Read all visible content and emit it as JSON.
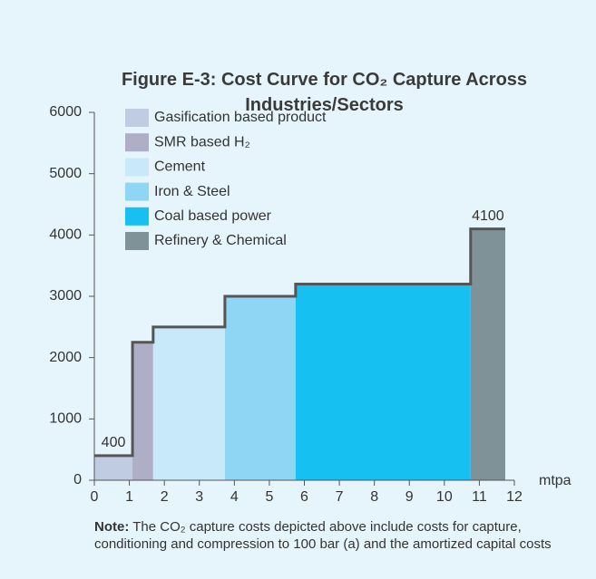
{
  "chart_data": {
    "type": "cost_curve",
    "title": "Figure E-3: Cost Curve for CO₂ Capture Across Industries/Sectors",
    "x_label": "mtpa",
    "categories": [
      "Gasification based product",
      "SMR based H₂",
      "Cement",
      "Iron & Steel",
      "Coal based power",
      "Refinery & Chemical"
    ],
    "colors": [
      "#c0cce2",
      "#aeaec6",
      "#c8e9f9",
      "#8fd6f5",
      "#16c0f0",
      "#7f9298"
    ],
    "bins": [
      0,
      1.09,
      1.68,
      3.73,
      5.75,
      10.75,
      11.74
    ],
    "values": [
      400,
      2250,
      2500,
      3000,
      3200,
      4100
    ],
    "data_labels": [
      true,
      false,
      false,
      false,
      false,
      true
    ],
    "xlim": [
      0,
      12
    ],
    "xticks": [
      0,
      1,
      2,
      3,
      4,
      5,
      6,
      7,
      8,
      9,
      10,
      11,
      12
    ],
    "ylim": [
      0,
      6000
    ],
    "yticks": [
      0,
      1000,
      2000,
      3000,
      4000,
      5000,
      6000
    ],
    "outline_color": "#555555",
    "note": {
      "label": "Note:",
      "text": "The CO₂ capture costs depicted above include costs for capture, conditioning and compression to 100 bar (a) and the amortized capital costs"
    }
  }
}
